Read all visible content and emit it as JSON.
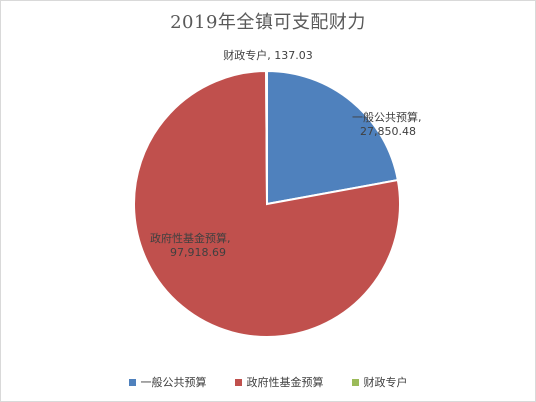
{
  "chart_data": {
    "type": "pie",
    "title": "2019年全镇可支配财力",
    "series": [
      {
        "name": "一般公共预算",
        "value": 27850.48,
        "value_label": "27,850.48",
        "color": "#4f81bd"
      },
      {
        "name": "政府性基金预算",
        "value": 97918.69,
        "value_label": "97,918.69",
        "color": "#c0504d"
      },
      {
        "name": "财政专户",
        "value": 137.03,
        "value_label": "137.03",
        "color": "#9bbb59"
      }
    ],
    "legend_position": "bottom"
  }
}
